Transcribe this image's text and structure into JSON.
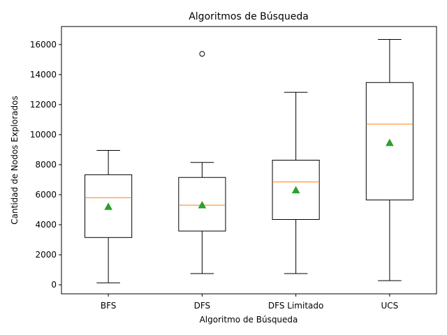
{
  "chart_data": {
    "type": "boxplot",
    "title": "Algoritmos de Búsqueda",
    "xlabel": "Algoritmo de Búsqueda",
    "ylabel": "Cantidad de Nodos Explorados",
    "ylim": [
      -600,
      17200
    ],
    "yticks": [
      0,
      2000,
      4000,
      6000,
      8000,
      10000,
      12000,
      14000,
      16000
    ],
    "ytick_labels": [
      "0",
      "2000",
      "4000",
      "6000",
      "8000",
      "10000",
      "12000",
      "14000",
      "16000"
    ],
    "categories": [
      "BFS",
      "DFS",
      "DFS Limitado",
      "UCS"
    ],
    "grid": false,
    "legend": "none",
    "boxes": [
      {
        "label": "BFS",
        "whisker_low": 130,
        "q1": 3150,
        "median": 5800,
        "q3": 7330,
        "whisker_high": 8950,
        "mean": 5200,
        "outliers": []
      },
      {
        "label": "DFS",
        "whisker_low": 750,
        "q1": 3580,
        "median": 5300,
        "q3": 7150,
        "whisker_high": 8150,
        "mean": 5300,
        "outliers": [
          15380
        ]
      },
      {
        "label": "DFS Limitado",
        "whisker_low": 750,
        "q1": 4350,
        "median": 6850,
        "q3": 8300,
        "whisker_high": 12820,
        "mean": 6300,
        "outliers": []
      },
      {
        "label": "UCS",
        "whisker_low": 280,
        "q1": 5650,
        "median": 10700,
        "q3": 13470,
        "whisker_high": 16340,
        "mean": 9450,
        "outliers": []
      }
    ],
    "colors": {
      "box": "#000000",
      "median": "#ff7f0e",
      "mean": "#2ca02c",
      "outlier": "#000000"
    }
  }
}
